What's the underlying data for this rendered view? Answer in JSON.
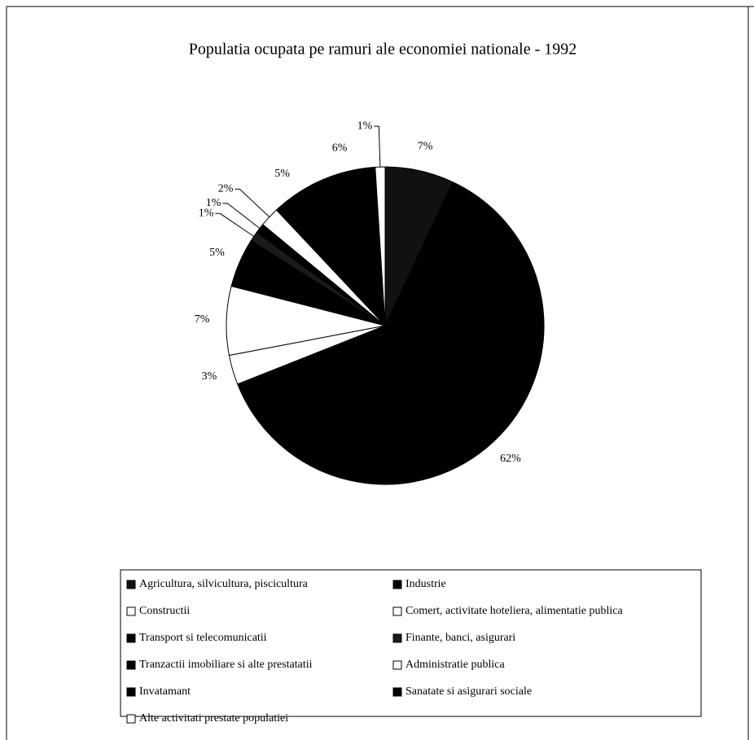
{
  "chart_data": {
    "type": "pie",
    "title": "Populatia ocupata pe ramuri ale economiei nationale - 1992",
    "categories": [
      "Agricultura, silvicultura, piscicultura",
      "Industrie",
      "Constructii",
      "Comert, activitate hoteliera, alimentatie publica",
      "Transport si telecomunicatii",
      "Finante, banci, asigurari",
      "Tranzactii imobiliare si alte prestatatii",
      "Administratie publica",
      "Invatamant",
      "Sanatate si asigurari sociale",
      "Alte activitati prestate populatiei"
    ],
    "values": [
      7,
      62,
      3,
      7,
      5,
      1,
      1,
      2,
      5,
      6,
      1
    ],
    "value_labels": [
      "7%",
      "62%",
      "3%",
      "7%",
      "5%",
      "1%",
      "1%",
      "2%",
      "5%",
      "6%",
      "1%"
    ],
    "colors": [
      "#111111",
      "#000000",
      "#ffffff",
      "#ffffff",
      "#000000",
      "#1a1a1a",
      "#000000",
      "#ffffff",
      "#000000",
      "#000000",
      "#ffffff"
    ],
    "legend": "bottom"
  }
}
